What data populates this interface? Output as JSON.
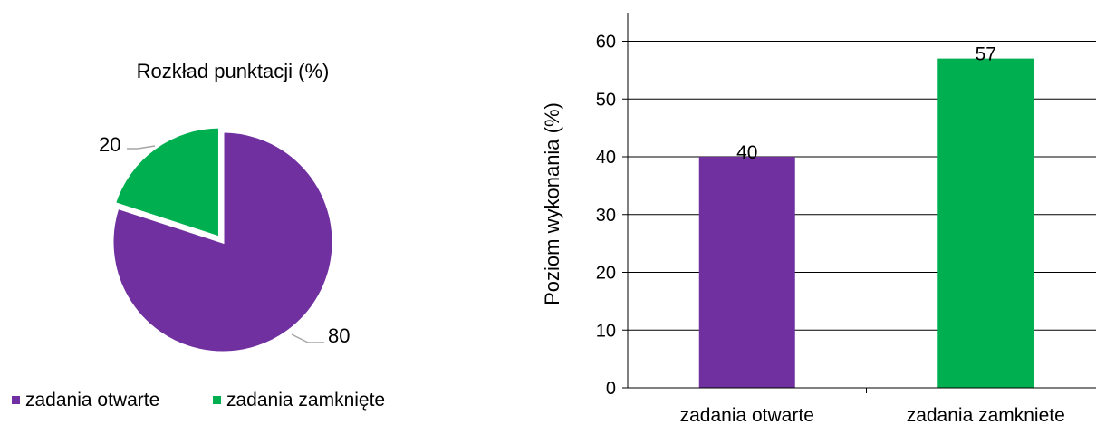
{
  "colors": {
    "open": "#7030a0",
    "closed": "#00b050"
  },
  "chart_data": [
    {
      "type": "pie",
      "title": "Rozkład punktacji (%)",
      "categories": [
        "zadania otwarte",
        "zadania zamknięte"
      ],
      "values": [
        80,
        20
      ],
      "data_labels": [
        "80",
        "20"
      ],
      "legend": {
        "position": "bottom",
        "entries": [
          "zadania otwarte",
          "zadania zamknięte"
        ]
      },
      "exploded_slice": "zadania zamknięte"
    },
    {
      "type": "bar",
      "title": "",
      "categories": [
        "zadania otwarte",
        "zadania zamkniete"
      ],
      "values": [
        40,
        57
      ],
      "data_labels": [
        "40",
        "57"
      ],
      "xlabel": "",
      "ylabel": "Poziom wykonania (%)",
      "ylim": [
        0,
        65
      ],
      "yticks": [
        0,
        10,
        20,
        30,
        40,
        50,
        60
      ],
      "grid": true,
      "legend": "none"
    }
  ]
}
